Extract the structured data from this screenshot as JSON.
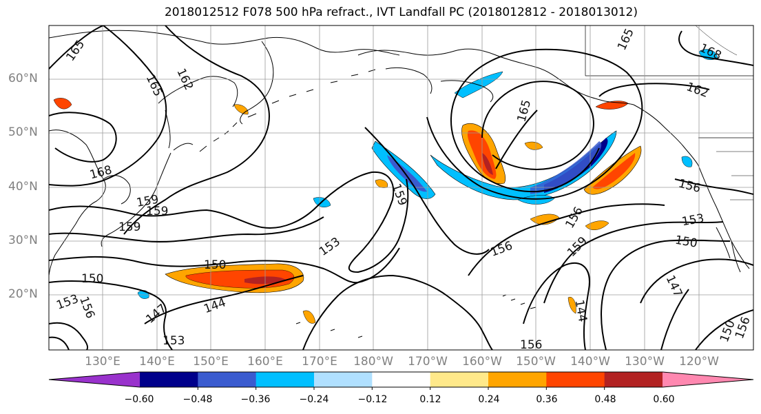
{
  "title": "2018012512 F078 500 hPa refract., IVT Landfall PC (2018012812 - 2018013012)",
  "map": {
    "lat_labels": [
      "60°N",
      "50°N",
      "40°N",
      "30°N",
      "20°N"
    ],
    "lon_labels": [
      "130°E",
      "140°E",
      "150°E",
      "160°E",
      "170°E",
      "180°W",
      "170°W",
      "160°W",
      "150°W",
      "140°W",
      "130°W",
      "120°W"
    ],
    "contour_labels": [
      "165",
      "165",
      "162",
      "168",
      "159",
      "159",
      "159",
      "153",
      "150",
      "150",
      "153",
      "156",
      "147",
      "144",
      "159",
      "153",
      "165",
      "162",
      "168",
      "165",
      "156",
      "156",
      "153",
      "150",
      "159",
      "156",
      "147",
      "144",
      "150",
      "156",
      "156"
    ],
    "colors": {
      "land_lines": "#000000",
      "grid": "#9a9a9a",
      "contour": "#000000"
    }
  },
  "colorbar": {
    "colors": [
      "#9932cc",
      "#00008b",
      "#3a5bcf",
      "#00bfff",
      "#b0e0ff",
      "#ffffff",
      "#ffe98a",
      "#ffa500",
      "#ff4500",
      "#b22222",
      "#ff88b0"
    ],
    "tick_labels": [
      "−0.60",
      "−0.48",
      "−0.36",
      "−0.24",
      "−0.12",
      "0.12",
      "0.24",
      "0.36",
      "0.48",
      "0.60"
    ]
  }
}
